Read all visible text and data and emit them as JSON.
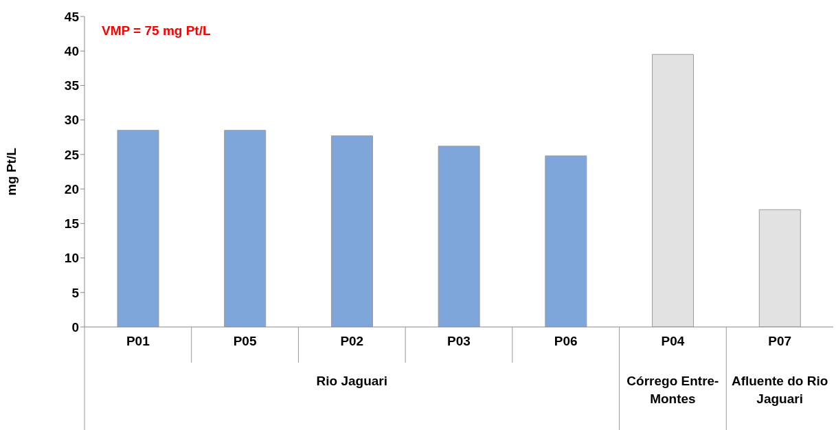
{
  "chart_data": {
    "type": "bar",
    "ylabel": "mg Pt/L",
    "categories": [
      "P01",
      "P05",
      "P02",
      "P03",
      "P06",
      "P04",
      "P07"
    ],
    "values": [
      28.5,
      28.5,
      27.7,
      26.2,
      24.8,
      39.5,
      17.0
    ],
    "colors": [
      "#7ea6da",
      "#7ea6da",
      "#7ea6da",
      "#7ea6da",
      "#7ea6da",
      "#e2e2e2",
      "#e2e2e2"
    ],
    "ylim": [
      0,
      45
    ],
    "yticks": [
      0,
      5,
      10,
      15,
      20,
      25,
      30,
      35,
      40,
      45
    ],
    "annotations": [
      "VMP = 75 mg Pt/L",
      "Rio Jaguari",
      "Córrego Entre-Montes",
      "Afluente do Rio Jaguari"
    ]
  }
}
